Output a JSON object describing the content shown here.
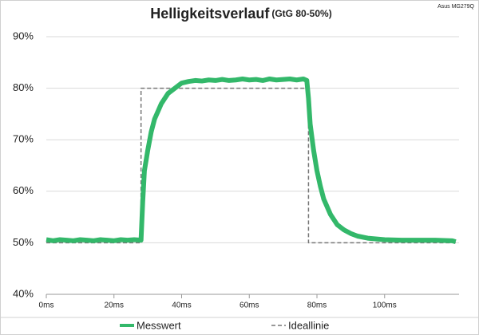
{
  "chart_data": {
    "type": "line",
    "title": "Helligkeitsverlauf",
    "subtitle": "(GtG 80-50%)",
    "annotation": "Asus MG279Q",
    "xlim": [
      0,
      122
    ],
    "xticks": [
      {
        "value": 0,
        "label": "0ms"
      },
      {
        "value": 20,
        "label": "20ms"
      },
      {
        "value": 40,
        "label": "40ms"
      },
      {
        "value": 60,
        "label": "60ms"
      },
      {
        "value": 80,
        "label": "80ms"
      },
      {
        "value": 100,
        "label": "100ms"
      }
    ],
    "ylim": [
      40,
      90
    ],
    "yticks": [
      {
        "value": 40,
        "label": "40%"
      },
      {
        "value": 50,
        "label": "50%"
      },
      {
        "value": 60,
        "label": "60%"
      },
      {
        "value": 70,
        "label": "70%"
      },
      {
        "value": 80,
        "label": "80%"
      },
      {
        "value": 90,
        "label": "90%"
      }
    ],
    "grid": true,
    "series": [
      {
        "name": "Messwert",
        "color": "#33b86a",
        "dashed": false,
        "x": [
          0,
          2,
          4,
          6,
          8,
          10,
          12,
          14,
          16,
          18,
          20,
          22,
          24,
          26,
          28,
          28.5,
          29,
          30,
          31,
          32,
          33,
          34,
          35,
          36,
          38,
          40,
          42,
          44,
          46,
          48,
          50,
          52,
          54,
          56,
          58,
          60,
          62,
          64,
          66,
          68,
          70,
          72,
          74,
          76,
          77,
          77.5,
          78,
          79,
          80,
          81,
          82,
          84,
          86,
          88,
          90,
          92,
          95,
          100,
          105,
          110,
          115,
          120,
          121
        ],
        "values": [
          50.6,
          50.4,
          50.6,
          50.5,
          50.4,
          50.6,
          50.5,
          50.4,
          50.6,
          50.5,
          50.4,
          50.6,
          50.5,
          50.6,
          50.5,
          58,
          64,
          68,
          71.5,
          74,
          75.5,
          77,
          78,
          79,
          80,
          81,
          81.3,
          81.5,
          81.4,
          81.6,
          81.5,
          81.7,
          81.5,
          81.6,
          81.8,
          81.6,
          81.7,
          81.5,
          81.8,
          81.6,
          81.7,
          81.8,
          81.6,
          81.8,
          81.5,
          78,
          73,
          68,
          64,
          61,
          58.5,
          55.5,
          53.5,
          52.5,
          51.8,
          51.3,
          50.9,
          50.6,
          50.5,
          50.5,
          50.5,
          50.4,
          50.2
        ]
      },
      {
        "name": "Ideallinie",
        "color": "#777777",
        "dashed": true,
        "x": [
          0,
          28,
          28,
          77.5,
          77.5,
          121
        ],
        "values": [
          50,
          50,
          80,
          80,
          50,
          50
        ]
      }
    ]
  }
}
